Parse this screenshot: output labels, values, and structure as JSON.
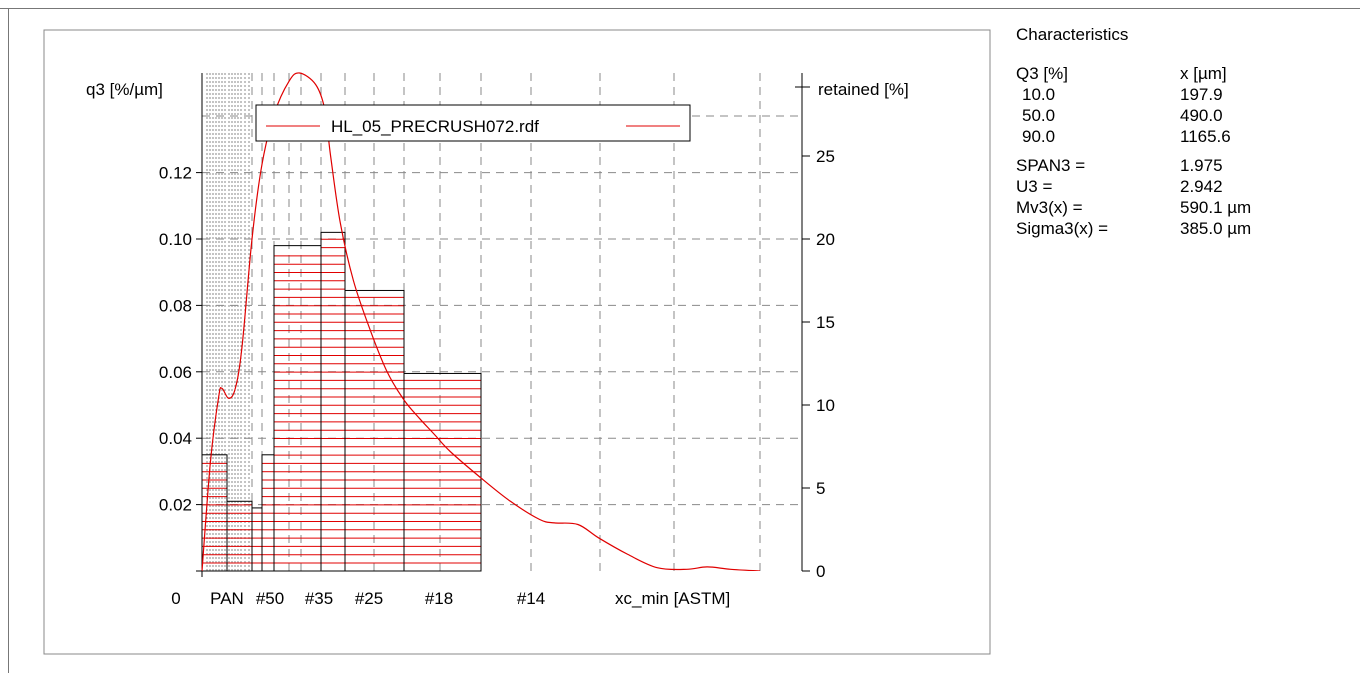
{
  "chart_data": {
    "type": "bar",
    "title": "",
    "ylabel_left": "q3 [%/µm]",
    "ylabel_right": "retained [%]",
    "xlabel": "xc_min [ASTM]",
    "x_tick_labels": [
      "0",
      "PAN",
      "#50",
      "#35",
      "#25",
      "#18",
      "#14"
    ],
    "y_left_ticks": [
      "0.02",
      "0.04",
      "0.06",
      "0.08",
      "0.10",
      "0.12"
    ],
    "y_right_ticks": [
      "0",
      "5",
      "10",
      "15",
      "20",
      "25"
    ],
    "ylim_left": [
      0,
      0.15
    ],
    "ylim_right": [
      0,
      30
    ],
    "grid": true,
    "legend_position": "top",
    "series": [
      {
        "name": "HL_05_PRECRUSH072.rdf",
        "color": "#e00000",
        "bars": [
          {
            "x0": 0,
            "x1": 75,
            "q3": 0.035
          },
          {
            "x0": 75,
            "x1": 150,
            "q3": 0.021
          },
          {
            "x0": 150,
            "x1": 180,
            "q3": 0.019
          },
          {
            "x0": 180,
            "x1": 212,
            "q3": 0.035
          },
          {
            "x0": 212,
            "x1": 300,
            "q3": 0.098
          },
          {
            "x0": 300,
            "x1": 425,
            "q3": 0.102
          },
          {
            "x0": 425,
            "x1": 600,
            "q3": 0.0845
          },
          {
            "x0": 600,
            "x1": 850,
            "q3": 0.0595
          }
        ],
        "curve_retained_pct": [
          [
            0,
            0.0
          ],
          [
            25,
            6.5
          ],
          [
            50,
            10.5
          ],
          [
            60,
            11.0
          ],
          [
            80,
            10.4
          ],
          [
            100,
            11.0
          ],
          [
            120,
            13.5
          ],
          [
            150,
            20.0
          ],
          [
            180,
            24.5
          ],
          [
            212,
            27.5
          ],
          [
            240,
            29.5
          ],
          [
            260,
            30.0
          ],
          [
            290,
            29.3
          ],
          [
            320,
            27.8
          ],
          [
            350,
            25.0
          ],
          [
            400,
            21.0
          ],
          [
            450,
            17.5
          ],
          [
            500,
            14.5
          ],
          [
            550,
            12.0
          ],
          [
            600,
            10.3
          ],
          [
            650,
            9.2
          ],
          [
            700,
            8.2
          ],
          [
            750,
            7.2
          ],
          [
            850,
            5.6
          ],
          [
            950,
            4.2
          ],
          [
            1050,
            3.1
          ],
          [
            1100,
            2.9
          ],
          [
            1180,
            2.8
          ],
          [
            1250,
            2.0
          ],
          [
            1350,
            1.0
          ],
          [
            1450,
            0.2
          ],
          [
            1550,
            0.1
          ],
          [
            1620,
            0.25
          ],
          [
            1700,
            0.1
          ],
          [
            1800,
            0.0
          ]
        ]
      }
    ]
  },
  "characteristics": {
    "title": "Characteristics",
    "header": {
      "col1": "Q3 [%]",
      "col2": "x [µm]"
    },
    "quantiles": [
      {
        "q": "10.0",
        "x": "197.9"
      },
      {
        "q": "50.0",
        "x": "490.0"
      },
      {
        "q": "90.0",
        "x": "1165.6"
      }
    ],
    "stats": [
      {
        "label": "SPAN3 =",
        "value": "1.975"
      },
      {
        "label": "U3 =",
        "value": "2.942"
      },
      {
        "label": "Mv3(x) =",
        "value": "590.1 µm"
      },
      {
        "label": "Sigma3(x) =",
        "value": "385.0 µm"
      }
    ]
  }
}
